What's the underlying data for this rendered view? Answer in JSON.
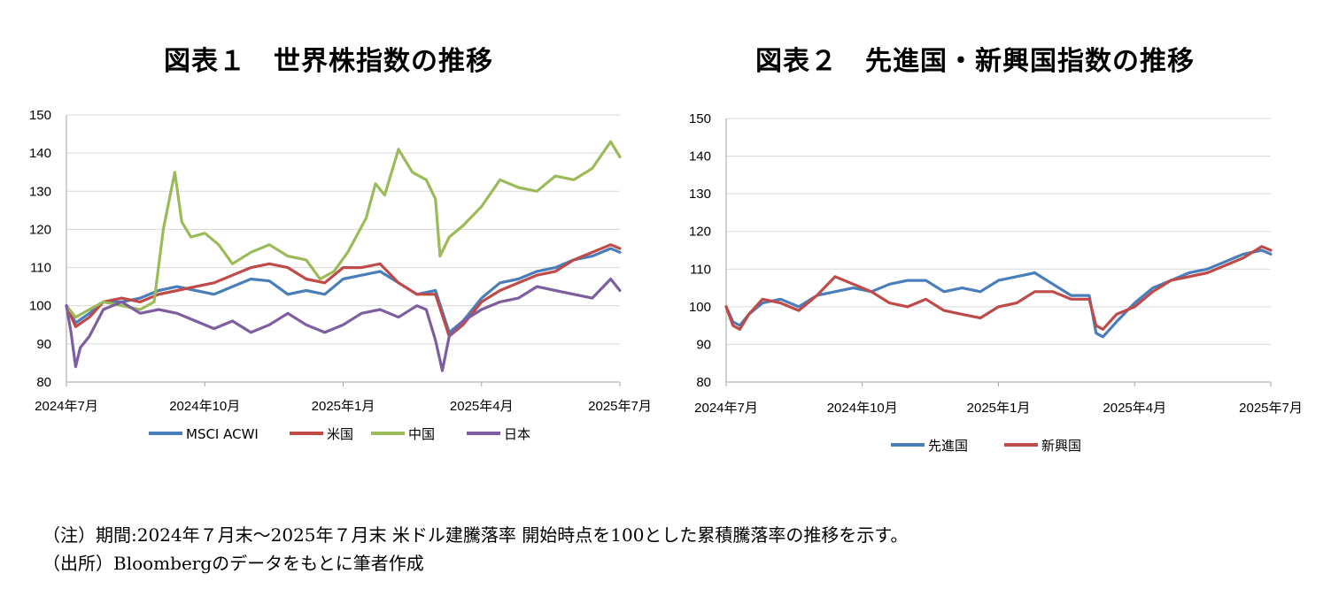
{
  "titles": {
    "chart1": "図表１　世界株指数の推移",
    "chart2": "図表２　先進国・新興国指数の推移"
  },
  "notes": {
    "note1": "（注）期間:2024年７月末〜2025年７月末 米ドル建騰落率 開始時点を100とした累積騰落率の推移を示す。",
    "note2": "（出所）Bloombergのデータをもとに筆者作成"
  },
  "chart_data": [
    {
      "type": "line",
      "title": "図表１　世界株指数の推移",
      "xlabel": "",
      "ylabel": "",
      "ylim": [
        80,
        150
      ],
      "yticks": [
        80,
        90,
        100,
        110,
        120,
        130,
        140,
        150
      ],
      "xlim": [
        0,
        12
      ],
      "xticks": [
        0,
        3,
        6,
        9,
        12
      ],
      "xtick_labels": [
        "2024年7月",
        "2024年10月",
        "2025年1月",
        "2025年4月",
        "2025年7月"
      ],
      "grid": "horizontal",
      "legend": "bottom",
      "series": [
        {
          "name": "MSCI ACWI",
          "color": "#4a7ebb",
          "x": [
            0,
            0.2,
            0.5,
            0.8,
            1.2,
            1.6,
            2.0,
            2.4,
            2.8,
            3.2,
            3.6,
            4.0,
            4.4,
            4.8,
            5.2,
            5.6,
            6.0,
            6.4,
            6.8,
            7.2,
            7.6,
            8.0,
            8.3,
            8.6,
            9.0,
            9.4,
            9.8,
            10.2,
            10.6,
            11.0,
            11.4,
            11.8,
            12.0
          ],
          "y": [
            100,
            95.5,
            98,
            101,
            101,
            102,
            104,
            105,
            104,
            103,
            105,
            107,
            106.5,
            103,
            104,
            103,
            107,
            108,
            109,
            106,
            103,
            104,
            93,
            96,
            102,
            106,
            107,
            109,
            110,
            112,
            113,
            115,
            114
          ]
        },
        {
          "name": "米国",
          "color": "#be4b48",
          "x": [
            0,
            0.2,
            0.5,
            0.8,
            1.2,
            1.6,
            2.0,
            2.4,
            2.8,
            3.2,
            3.6,
            4.0,
            4.4,
            4.8,
            5.2,
            5.6,
            6.0,
            6.4,
            6.8,
            7.2,
            7.6,
            8.0,
            8.3,
            8.6,
            9.0,
            9.4,
            9.8,
            10.2,
            10.6,
            11.0,
            11.4,
            11.8,
            12.0
          ],
          "y": [
            100,
            94.5,
            97,
            101,
            102,
            101,
            103,
            104,
            105,
            106,
            108,
            110,
            111,
            110,
            107,
            106,
            110,
            110,
            111,
            106,
            103,
            103,
            92,
            95,
            101,
            104,
            106,
            108,
            109,
            112,
            114,
            116,
            115
          ]
        },
        {
          "name": "中国",
          "color": "#9bbb59",
          "x": [
            0,
            0.2,
            0.5,
            0.8,
            1.2,
            1.6,
            1.9,
            2.1,
            2.35,
            2.5,
            2.7,
            3.0,
            3.3,
            3.6,
            4.0,
            4.4,
            4.8,
            5.2,
            5.5,
            5.8,
            6.1,
            6.5,
            6.7,
            6.9,
            7.2,
            7.5,
            7.8,
            8.0,
            8.1,
            8.3,
            8.6,
            9.0,
            9.4,
            9.8,
            10.2,
            10.6,
            11.0,
            11.4,
            11.8,
            12.0
          ],
          "y": [
            100,
            97,
            99,
            101,
            100,
            99,
            101,
            120,
            135,
            122,
            118,
            119,
            116,
            111,
            114,
            116,
            113,
            112,
            107,
            109,
            114,
            123,
            132,
            129,
            141,
            135,
            133,
            128,
            113,
            118,
            121,
            126,
            133,
            131,
            130,
            134,
            133,
            136,
            143,
            139
          ]
        },
        {
          "name": "日本",
          "color": "#7d5fa0",
          "x": [
            0,
            0.1,
            0.2,
            0.3,
            0.5,
            0.8,
            1.2,
            1.6,
            2.0,
            2.4,
            2.8,
            3.2,
            3.6,
            4.0,
            4.4,
            4.8,
            5.2,
            5.6,
            6.0,
            6.4,
            6.8,
            7.2,
            7.6,
            7.8,
            8.0,
            8.15,
            8.3,
            8.6,
            9.0,
            9.4,
            9.8,
            10.2,
            10.6,
            11.0,
            11.4,
            11.8,
            12.0
          ],
          "y": [
            100,
            93,
            84,
            89,
            92,
            99,
            101,
            98,
            99,
            98,
            96,
            94,
            96,
            93,
            95,
            98,
            95,
            93,
            95,
            98,
            99,
            97,
            100,
            99,
            91,
            83,
            92,
            96,
            99,
            101,
            102,
            105,
            104,
            103,
            102,
            107,
            104
          ]
        }
      ]
    },
    {
      "type": "line",
      "title": "図表２　先進国・新興国指数の推移",
      "xlabel": "",
      "ylabel": "",
      "ylim": [
        80,
        150
      ],
      "yticks": [
        80,
        90,
        100,
        110,
        120,
        130,
        140,
        150
      ],
      "xlim": [
        0,
        12
      ],
      "xticks": [
        0,
        3,
        6,
        9,
        12
      ],
      "xtick_labels": [
        "2024年7月",
        "2024年10月",
        "2025年1月",
        "2025年4月",
        "2025年7月"
      ],
      "grid": "horizontal",
      "legend": "bottom",
      "series": [
        {
          "name": "先進国",
          "color": "#4a7ebb",
          "x": [
            0,
            0.15,
            0.3,
            0.5,
            0.8,
            1.2,
            1.6,
            2.0,
            2.4,
            2.8,
            3.2,
            3.6,
            4.0,
            4.4,
            4.8,
            5.2,
            5.6,
            6.0,
            6.4,
            6.8,
            7.2,
            7.6,
            8.0,
            8.15,
            8.3,
            8.6,
            9.0,
            9.4,
            9.8,
            10.2,
            10.6,
            11.0,
            11.4,
            11.8,
            12.0
          ],
          "y": [
            100,
            96,
            95,
            98,
            101,
            102,
            100,
            103,
            104,
            105,
            104,
            106,
            107,
            107,
            104,
            105,
            104,
            107,
            108,
            109,
            106,
            103,
            103,
            93,
            92,
            96,
            101,
            105,
            107,
            109,
            110,
            112,
            114,
            115,
            114
          ]
        },
        {
          "name": "新興国",
          "color": "#be4b48",
          "x": [
            0,
            0.15,
            0.3,
            0.5,
            0.8,
            1.2,
            1.6,
            2.0,
            2.4,
            2.8,
            3.2,
            3.6,
            4.0,
            4.4,
            4.8,
            5.2,
            5.6,
            6.0,
            6.4,
            6.8,
            7.2,
            7.6,
            8.0,
            8.15,
            8.3,
            8.6,
            9.0,
            9.4,
            9.8,
            10.2,
            10.6,
            11.0,
            11.4,
            11.8,
            12.0
          ],
          "y": [
            100,
            95,
            94,
            98,
            102,
            101,
            99,
            103,
            108,
            106,
            104,
            101,
            100,
            102,
            99,
            98,
            97,
            100,
            101,
            104,
            104,
            102,
            102,
            95,
            94,
            98,
            100,
            104,
            107,
            108,
            109,
            111,
            113,
            116,
            115
          ]
        }
      ]
    }
  ]
}
